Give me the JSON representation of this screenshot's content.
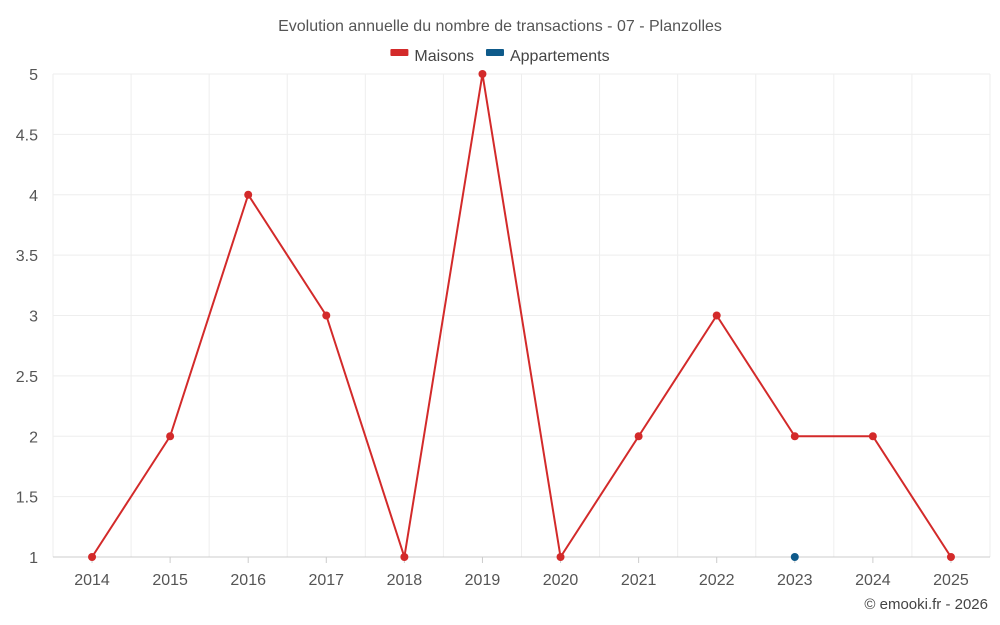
{
  "chart_data": {
    "type": "line",
    "title": "Evolution annuelle du nombre de transactions - 07 - Planzolles",
    "categories": [
      "2014",
      "2015",
      "2016",
      "2017",
      "2018",
      "2019",
      "2020",
      "2021",
      "2022",
      "2023",
      "2024",
      "2025"
    ],
    "series": [
      {
        "name": "Maisons",
        "color": "#d32a2a",
        "values": [
          1,
          2,
          4,
          3,
          1,
          5,
          1,
          2,
          3,
          2,
          2,
          1
        ]
      },
      {
        "name": "Appartements",
        "color": "#0e5a8a",
        "values": [
          null,
          null,
          null,
          null,
          null,
          null,
          null,
          null,
          null,
          1,
          null,
          null
        ]
      }
    ],
    "ylim": [
      1,
      5
    ],
    "yticks": [
      "1",
      "1.5",
      "2",
      "2.5",
      "3",
      "3.5",
      "4",
      "4.5",
      "5"
    ],
    "grid": true,
    "legend_position": "top-center"
  },
  "credit": "© emooki.fr - 2026"
}
